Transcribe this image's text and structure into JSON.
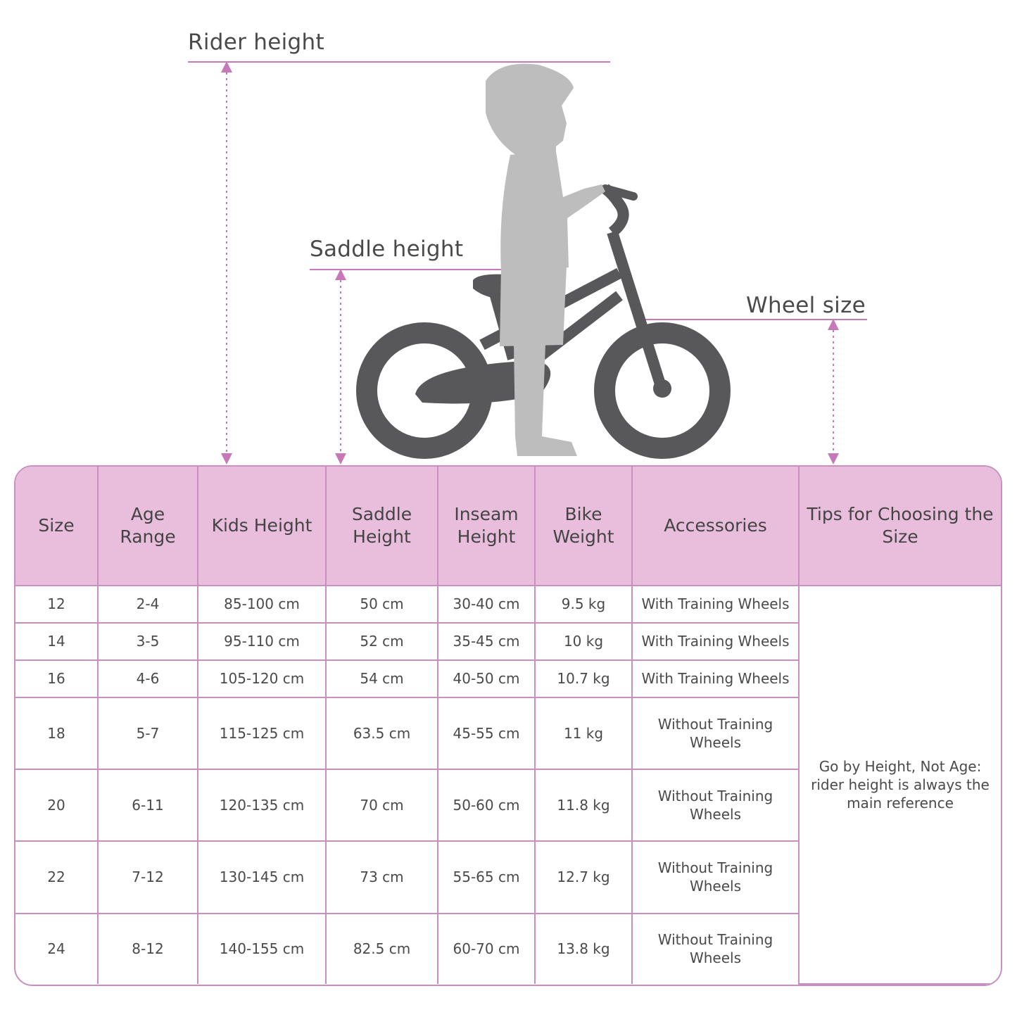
{
  "labels": {
    "rider_height": "Rider height",
    "saddle_height": "Saddle height",
    "wheel_size": "Wheel size"
  },
  "colors": {
    "accent_line": "#c678b8",
    "header_bg": "#e9bedd",
    "bike": "#58585a",
    "rider": "#bdbdbd"
  },
  "table": {
    "headers": [
      "Size",
      "Age Range",
      "Kids Height",
      "Saddle Height",
      "Inseam Height",
      "Bike Weight",
      "Accessories",
      "Tips for Choosing the Size"
    ],
    "rows": [
      [
        "12",
        "2-4",
        "85-100 cm",
        "50 cm",
        "30-40 cm",
        "9.5 kg",
        "With Training Wheels"
      ],
      [
        "14",
        "3-5",
        "95-110 cm",
        "52 cm",
        "35-45 cm",
        "10 kg",
        "With Training Wheels"
      ],
      [
        "16",
        "4-6",
        "105-120 cm",
        "54 cm",
        "40-50 cm",
        "10.7 kg",
        "With Training Wheels"
      ],
      [
        "18",
        "5-7",
        "115-125 cm",
        "63.5 cm",
        "45-55 cm",
        "11 kg",
        "Without Training Wheels"
      ],
      [
        "20",
        "6-11",
        "120-135 cm",
        "70 cm",
        "50-60 cm",
        "11.8 kg",
        "Without Training Wheels"
      ],
      [
        "22",
        "7-12",
        "130-145 cm",
        "73 cm",
        "55-65 cm",
        "12.7 kg",
        "Without Training Wheels"
      ],
      [
        "24",
        "8-12",
        "140-155 cm",
        "82.5 cm",
        "60-70 cm",
        "13.8 kg",
        "Without Training Wheels"
      ]
    ],
    "tip": "Go by Height, Not Age: rider height is always the main reference"
  }
}
